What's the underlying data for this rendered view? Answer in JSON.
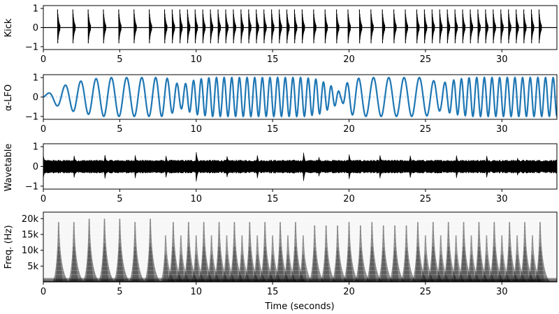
{
  "chart_data": [
    {
      "type": "line",
      "ylabel": "Kick",
      "xlim": [
        0,
        33.6
      ],
      "ylim": [
        -1.15,
        1.15
      ],
      "x_ticks": [
        0,
        5,
        10,
        15,
        20,
        25,
        30
      ],
      "x_tick_labels": [
        "0",
        "5",
        "10",
        "15",
        "20",
        "25",
        "30"
      ],
      "y_ticks": [
        -1,
        0,
        1
      ],
      "y_tick_labels": [
        "−1",
        "0",
        "1"
      ],
      "color": "#000000",
      "series": [
        {
          "baseline": 0,
          "peak_amplitude": 0.95,
          "onset_times": [
            1.0,
            2.0,
            3.0,
            4.0,
            5.0,
            6.0,
            7.0,
            8.0,
            8.5,
            9.0,
            9.5,
            10.0,
            10.5,
            11.0,
            11.5,
            12.0,
            12.5,
            13.0,
            13.5,
            14.0,
            14.5,
            15.0,
            15.5,
            16.0,
            16.5,
            17.0,
            17.75,
            18.5,
            19.25,
            20.0,
            20.75,
            21.5,
            22.25,
            23.0,
            23.75,
            24.5,
            25.0,
            25.5,
            26.0,
            26.5,
            27.0,
            27.5,
            28.0,
            28.5,
            29.0,
            29.5,
            30.0,
            30.5,
            31.0,
            31.5,
            32.0,
            32.5
          ]
        }
      ]
    },
    {
      "type": "line",
      "ylabel": "α-LFO",
      "xlim": [
        0,
        33.6
      ],
      "ylim": [
        -1.15,
        1.15
      ],
      "x_ticks": [
        0,
        5,
        10,
        15,
        20,
        25,
        30
      ],
      "x_tick_labels": [
        "0",
        "5",
        "10",
        "15",
        "20",
        "25",
        "30"
      ],
      "y_ticks": [
        -1,
        0,
        1
      ],
      "y_tick_labels": [
        "−1",
        "0",
        "1"
      ],
      "color": "#1f77b4",
      "series": [
        {
          "description_points_x": [
            0.0,
            1.0,
            2.0,
            3.0,
            4.0,
            5.0,
            6.0,
            7.0,
            8.0,
            9.0,
            10.0,
            11.0,
            12.0,
            13.0,
            14.0,
            15.0,
            16.0,
            17.0,
            18.0,
            19.0,
            19.5,
            20.0,
            21.0,
            22.0,
            23.0,
            24.0,
            25.0,
            26.0,
            27.0,
            28.0,
            29.0,
            30.0,
            31.0,
            32.0,
            33.6
          ],
          "amplitude": [
            0.05,
            0.5,
            0.75,
            0.9,
            1.0,
            1.0,
            1.0,
            1.0,
            1.0,
            0.6,
            0.9,
            1.0,
            1.0,
            1.0,
            1.0,
            1.0,
            1.0,
            1.0,
            0.9,
            0.5,
            0.2,
            0.9,
            1.0,
            1.0,
            1.0,
            1.0,
            1.0,
            0.7,
            0.9,
            1.0,
            1.0,
            1.0,
            1.0,
            1.0,
            1.0
          ],
          "frequency_hz": [
            0.8,
            0.9,
            1.0,
            1.0,
            1.0,
            1.0,
            1.0,
            1.1,
            1.4,
            1.8,
            2.0,
            2.0,
            2.0,
            2.0,
            2.0,
            2.0,
            2.0,
            2.0,
            2.0,
            2.0,
            2.0,
            1.4,
            1.0,
            1.0,
            1.0,
            1.0,
            1.0,
            1.4,
            2.0,
            2.0,
            2.0,
            2.0,
            2.0,
            2.0,
            2.0
          ],
          "zero_line": "dotted"
        }
      ]
    },
    {
      "type": "area",
      "ylabel": "Wavetable",
      "xlim": [
        0,
        33.6
      ],
      "ylim": [
        -1.15,
        1.15
      ],
      "x_ticks": [
        0,
        5,
        10,
        15,
        20,
        25,
        30
      ],
      "x_tick_labels": [
        "0",
        "5",
        "10",
        "15",
        "20",
        "25",
        "30"
      ],
      "y_ticks": [
        -1,
        0,
        1
      ],
      "y_tick_labels": [
        "−1",
        "0",
        "1"
      ],
      "color": "#000000",
      "series": [
        {
          "sustain_envelope": 0.3,
          "transient_times": [
            0,
            2,
            4,
            6,
            8,
            10,
            12,
            14,
            17,
            18,
            20,
            22,
            24,
            27,
            29,
            31
          ],
          "transient_peaks": [
            0.6,
            0.65,
            0.8,
            0.65,
            0.7,
            0.8,
            0.65,
            0.6,
            0.9,
            0.65,
            0.7,
            0.75,
            0.6,
            0.75,
            0.6,
            0.55
          ]
        }
      ]
    },
    {
      "type": "heatmap",
      "ylabel": "Freq. (Hz)",
      "xlabel": "Time (seconds)",
      "xlim": [
        0,
        33.6
      ],
      "ylim": [
        0,
        22050
      ],
      "x_ticks": [
        0,
        5,
        10,
        15,
        20,
        25,
        30
      ],
      "x_tick_labels": [
        "0",
        "5",
        "10",
        "15",
        "20",
        "25",
        "30"
      ],
      "y_ticks": [
        5000,
        10000,
        15000,
        20000
      ],
      "y_tick_labels": [
        "5k",
        "10k",
        "15k",
        "20k"
      ],
      "colormap": "gray_r",
      "series": [
        {
          "onset_times": [
            1.0,
            2.0,
            3.0,
            4.0,
            5.0,
            6.0,
            7.0,
            8.0,
            8.5,
            9.0,
            9.5,
            10.0,
            10.5,
            11.0,
            11.5,
            12.0,
            12.5,
            13.0,
            13.5,
            14.0,
            14.5,
            15.0,
            15.5,
            16.0,
            16.5,
            17.0,
            17.75,
            18.5,
            19.25,
            20.0,
            20.75,
            21.5,
            22.25,
            23.0,
            23.75,
            24.5,
            25.0,
            25.5,
            26.0,
            26.5,
            27.0,
            27.5,
            28.0,
            28.5,
            29.0,
            29.5,
            30.0,
            30.5,
            31.0,
            31.5,
            32.0,
            32.5
          ],
          "onset_strength": [
            0.9,
            0.9,
            0.95,
            0.95,
            0.95,
            0.9,
            0.95,
            0.7,
            0.9,
            0.7,
            0.9,
            0.7,
            0.9,
            0.7,
            0.9,
            0.7,
            0.9,
            0.7,
            0.9,
            0.7,
            0.9,
            0.7,
            0.9,
            0.7,
            0.9,
            0.7,
            0.85,
            0.85,
            0.85,
            0.9,
            0.85,
            0.9,
            0.85,
            0.85,
            0.85,
            0.9,
            0.7,
            0.9,
            0.7,
            0.9,
            0.7,
            0.9,
            0.7,
            0.9,
            0.7,
            0.9,
            0.7,
            0.9,
            0.7,
            0.9,
            0.7,
            0.9
          ]
        }
      ]
    }
  ]
}
